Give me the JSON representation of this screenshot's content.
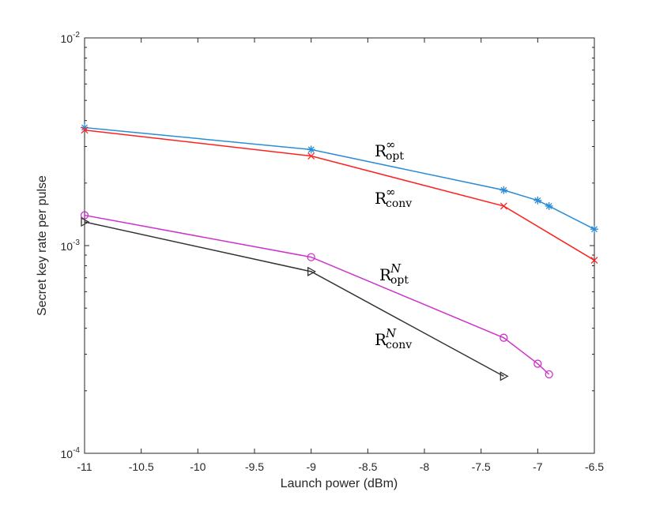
{
  "chart_data": {
    "type": "line",
    "title": "",
    "xlabel": "Launch power (dBm)",
    "ylabel": "Secret key rate per pulse",
    "xlim": [
      -11,
      -6.5
    ],
    "ylim": [
      0.0001,
      0.01
    ],
    "yscale": "log",
    "grid": false,
    "xticks": [
      "-11",
      "-10.5",
      "-10",
      "-9.5",
      "-9",
      "-8.5",
      "-8",
      "-7.5",
      "-7",
      "-6.5"
    ],
    "yticks": [
      {
        "value": 0.01,
        "base": "10",
        "exp": "-2"
      },
      {
        "value": 0.001,
        "base": "10",
        "exp": "-3"
      },
      {
        "value": 0.0001,
        "base": "10",
        "exp": "-4"
      }
    ],
    "series": [
      {
        "name": "R_opt^∞",
        "label_main": "R",
        "label_sub": "opt",
        "label_sup": "∞",
        "color": "#2b8cd6",
        "marker": "star",
        "x": [
          -11,
          -9,
          -7.3,
          -7,
          -6.9,
          -6.5
        ],
        "y": [
          0.0037,
          0.0029,
          0.00185,
          0.00165,
          0.00155,
          0.0012
        ]
      },
      {
        "name": "R_conv^∞",
        "label_main": "R",
        "label_sub": "conv",
        "label_sup": "∞",
        "color": "#ff2020",
        "marker": "x",
        "x": [
          -11,
          -9,
          -7.3,
          -6.5
        ],
        "y": [
          0.0036,
          0.0027,
          0.00155,
          0.00085
        ]
      },
      {
        "name": "R_opt^N",
        "label_main": "R",
        "label_sub": "opt",
        "label_sup": "N",
        "color": "#cc33cc",
        "marker": "circle",
        "x": [
          -11,
          -9,
          -7.3,
          -7,
          -6.9
        ],
        "y": [
          0.0014,
          0.00088,
          0.00036,
          0.00027,
          0.00024
        ]
      },
      {
        "name": "R_conv^N",
        "label_main": "R",
        "label_sub": "conv",
        "label_sup": "N",
        "color": "#333333",
        "marker": "triangle-right",
        "x": [
          -11,
          -9,
          -7.3
        ],
        "y": [
          0.0013,
          0.00075,
          0.000235
        ]
      }
    ]
  }
}
